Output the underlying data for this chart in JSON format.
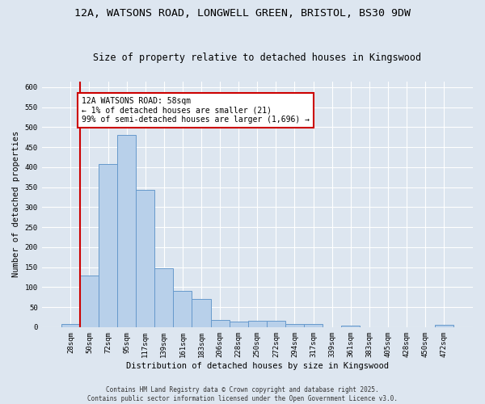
{
  "title_line1": "12A, WATSONS ROAD, LONGWELL GREEN, BRISTOL, BS30 9DW",
  "title_line2": "Size of property relative to detached houses in Kingswood",
  "xlabel": "Distribution of detached houses by size in Kingswood",
  "ylabel": "Number of detached properties",
  "categories": [
    "28sqm",
    "50sqm",
    "72sqm",
    "95sqm",
    "117sqm",
    "139sqm",
    "161sqm",
    "183sqm",
    "206sqm",
    "228sqm",
    "250sqm",
    "272sqm",
    "294sqm",
    "317sqm",
    "339sqm",
    "361sqm",
    "383sqm",
    "405sqm",
    "428sqm",
    "450sqm",
    "472sqm"
  ],
  "values": [
    8,
    128,
    407,
    480,
    343,
    148,
    90,
    70,
    18,
    13,
    15,
    15,
    7,
    7,
    0,
    3,
    0,
    0,
    0,
    0,
    5
  ],
  "bar_color": "#b8d0ea",
  "bar_edge_color": "#6699cc",
  "bar_edge_width": 0.7,
  "vline_color": "#cc0000",
  "vline_linewidth": 1.5,
  "vline_pos": 0.5,
  "annotation_text": "12A WATSONS ROAD: 58sqm\n← 1% of detached houses are smaller (21)\n99% of semi-detached houses are larger (1,696) →",
  "annotation_box_color": "#cc0000",
  "ylim": [
    0,
    615
  ],
  "yticks": [
    0,
    50,
    100,
    150,
    200,
    250,
    300,
    350,
    400,
    450,
    500,
    550,
    600
  ],
  "background_color": "#dde6f0",
  "plot_background_color": "#dde6f0",
  "footer_text": "Contains HM Land Registry data © Crown copyright and database right 2025.\nContains public sector information licensed under the Open Government Licence v3.0.",
  "title_fontsize": 9.5,
  "subtitle_fontsize": 8.5,
  "ylabel_fontsize": 7.5,
  "xlabel_fontsize": 7.5,
  "tick_fontsize": 6.5,
  "annot_fontsize": 7,
  "footer_fontsize": 5.5
}
